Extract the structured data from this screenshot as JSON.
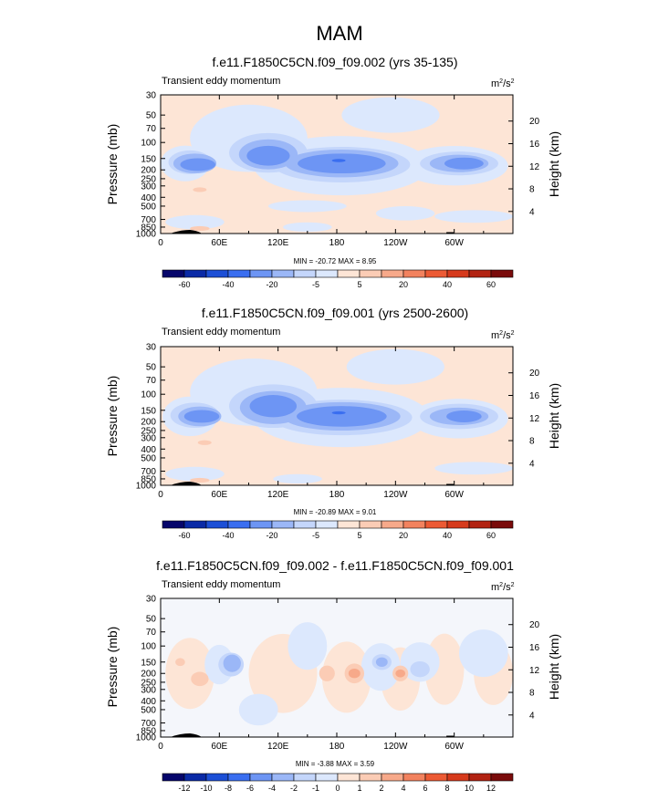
{
  "figure": {
    "title": "MAM",
    "colors": {
      "bg": "#ffffff",
      "axis": "#000000",
      "terrain": "#000000"
    }
  },
  "scales": {
    "pressure_label": "Pressure (mb)",
    "height_label": "Height (km)",
    "pressure_ticks": [
      30,
      50,
      70,
      100,
      150,
      200,
      250,
      300,
      400,
      500,
      700,
      850,
      1000
    ],
    "height_ticks": [
      4,
      8,
      12,
      16,
      20
    ],
    "lon_ticks": [
      "0",
      "60E",
      "120E",
      "180",
      "120W",
      "60W"
    ],
    "units_base": "m",
    "units_sup1": "2",
    "units_mid": "/s",
    "units_sup2": "2"
  },
  "chart_data": [
    {
      "type": "heatmap",
      "title": "f.e11.F1850C5CN.f09_f09.002 (yrs 35-135)",
      "subtitle": "Transient eddy momentum",
      "xlabel": "",
      "ylabel": "Pressure (mb)",
      "y2label": "Height (km)",
      "x_ticks": [
        "0",
        "60E",
        "120E",
        "180",
        "120W",
        "60W"
      ],
      "y_ticks": [
        30,
        50,
        70,
        100,
        150,
        200,
        250,
        300,
        400,
        500,
        700,
        850,
        1000
      ],
      "y2_ticks": [
        4,
        8,
        12,
        16,
        20
      ],
      "y_scale": "log",
      "stats": "MIN = -20.72   MAX =   8.95",
      "min": -20.72,
      "max": 8.95,
      "colorbar_labels": [
        "-60",
        "-40",
        "-20",
        "-5",
        "5",
        "20",
        "40",
        "60"
      ],
      "colorbar_colors": [
        "#06066b",
        "#0a2aa6",
        "#1c4fd6",
        "#3a6ef0",
        "#6d95f4",
        "#9bb7f7",
        "#c4d6fb",
        "#dce8fd",
        "#fde5d6",
        "#fbccb5",
        "#f7a98a",
        "#f2825e",
        "#ec5a34",
        "#d63a1c",
        "#b22312",
        "#7a0b0b"
      ],
      "annotation_note": ""
    },
    {
      "type": "heatmap",
      "title": "f.e11.F1850C5CN.f09_f09.001 (yrs 2500-2600)",
      "subtitle": "Transient eddy momentum",
      "xlabel": "",
      "ylabel": "Pressure (mb)",
      "y2label": "Height (km)",
      "x_ticks": [
        "0",
        "60E",
        "120E",
        "180",
        "120W",
        "60W"
      ],
      "y_ticks": [
        30,
        50,
        70,
        100,
        150,
        200,
        250,
        300,
        400,
        500,
        700,
        850,
        1000
      ],
      "y2_ticks": [
        4,
        8,
        12,
        16,
        20
      ],
      "y_scale": "log",
      "stats": "MIN = -20.89   MAX =   9.01",
      "min": -20.89,
      "max": 9.01,
      "colorbar_labels": [
        "-60",
        "-40",
        "-20",
        "-5",
        "5",
        "20",
        "40",
        "60"
      ],
      "colorbar_colors": [
        "#06066b",
        "#0a2aa6",
        "#1c4fd6",
        "#3a6ef0",
        "#6d95f4",
        "#9bb7f7",
        "#c4d6fb",
        "#dce8fd",
        "#fde5d6",
        "#fbccb5",
        "#f7a98a",
        "#f2825e",
        "#ec5a34",
        "#d63a1c",
        "#b22312",
        "#7a0b0b"
      ]
    },
    {
      "type": "heatmap",
      "title": "f.e11.F1850C5CN.f09_f09.002 - f.e11.F1850C5CN.f09_f09.001",
      "subtitle": "Transient eddy momentum",
      "xlabel": "",
      "ylabel": "Pressure (mb)",
      "y2label": "Height (km)",
      "x_ticks": [
        "0",
        "60E",
        "120E",
        "180",
        "120W",
        "60W"
      ],
      "y_ticks": [
        30,
        50,
        70,
        100,
        150,
        200,
        250,
        300,
        400,
        500,
        700,
        850,
        1000
      ],
      "y2_ticks": [
        4,
        8,
        12,
        16,
        20
      ],
      "y_scale": "log",
      "stats": "MIN = -3.88   MAX =   3.59",
      "min": -3.88,
      "max": 3.59,
      "colorbar_labels": [
        "-12",
        "-10",
        "-8",
        "-6",
        "-4",
        "-2",
        "-1",
        "0",
        "1",
        "2",
        "4",
        "6",
        "8",
        "10",
        "12"
      ],
      "colorbar_colors": [
        "#06066b",
        "#0a2aa6",
        "#1c4fd6",
        "#3a6ef0",
        "#6d95f4",
        "#9bb7f7",
        "#c4d6fb",
        "#dce8fd",
        "#fde5d6",
        "#fbccb5",
        "#f7a98a",
        "#f2825e",
        "#ec5a34",
        "#d63a1c",
        "#b22312",
        "#7a0b0b"
      ]
    }
  ]
}
